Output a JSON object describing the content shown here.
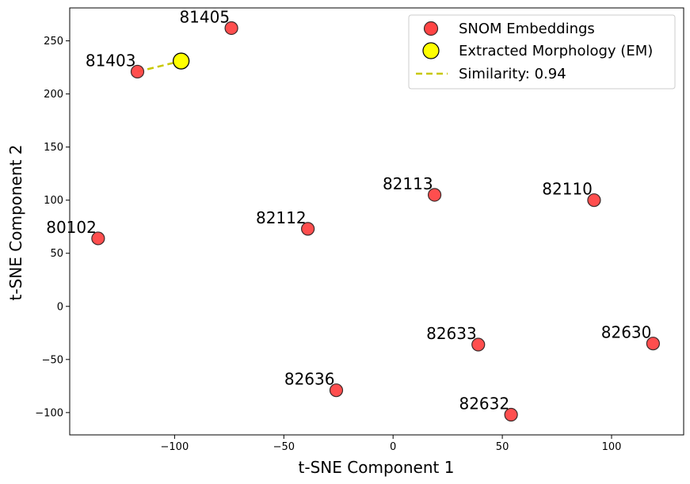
{
  "chart_data": {
    "type": "scatter",
    "xlabel": "t-SNE Component 1",
    "ylabel": "t-SNE Component 2",
    "xlim": [
      -148,
      133
    ],
    "ylim": [
      -121,
      281
    ],
    "x_ticks": [
      -100,
      -50,
      0,
      50,
      100
    ],
    "y_ticks": [
      -100,
      -50,
      0,
      50,
      100,
      150,
      200,
      250
    ],
    "grid": false,
    "legend_position": "top-right",
    "series": [
      {
        "name": "SNOM Embeddings",
        "color": "#ff4444",
        "points": [
          {
            "label": "81405",
            "x": -74,
            "y": 262
          },
          {
            "label": "81403",
            "x": -117,
            "y": 221
          },
          {
            "label": "82113",
            "x": 19,
            "y": 105
          },
          {
            "label": "82110",
            "x": 92,
            "y": 100
          },
          {
            "label": "82112",
            "x": -39,
            "y": 73
          },
          {
            "label": "80102",
            "x": -135,
            "y": 64
          },
          {
            "label": "82633",
            "x": 39,
            "y": -36
          },
          {
            "label": "82630",
            "x": 119,
            "y": -35
          },
          {
            "label": "82636",
            "x": -26,
            "y": -79
          },
          {
            "label": "82632",
            "x": 54,
            "y": -102
          }
        ]
      },
      {
        "name": "Extracted Morphology (EM)",
        "color": "#ffff00",
        "points": [
          {
            "label": "",
            "x": -97,
            "y": 231
          }
        ]
      }
    ],
    "lines": [
      {
        "name": "Similarity: 0.94",
        "color": "#c8c800",
        "style": "dashed",
        "x": [
          -117,
          -97
        ],
        "y": [
          221,
          231
        ]
      }
    ]
  }
}
